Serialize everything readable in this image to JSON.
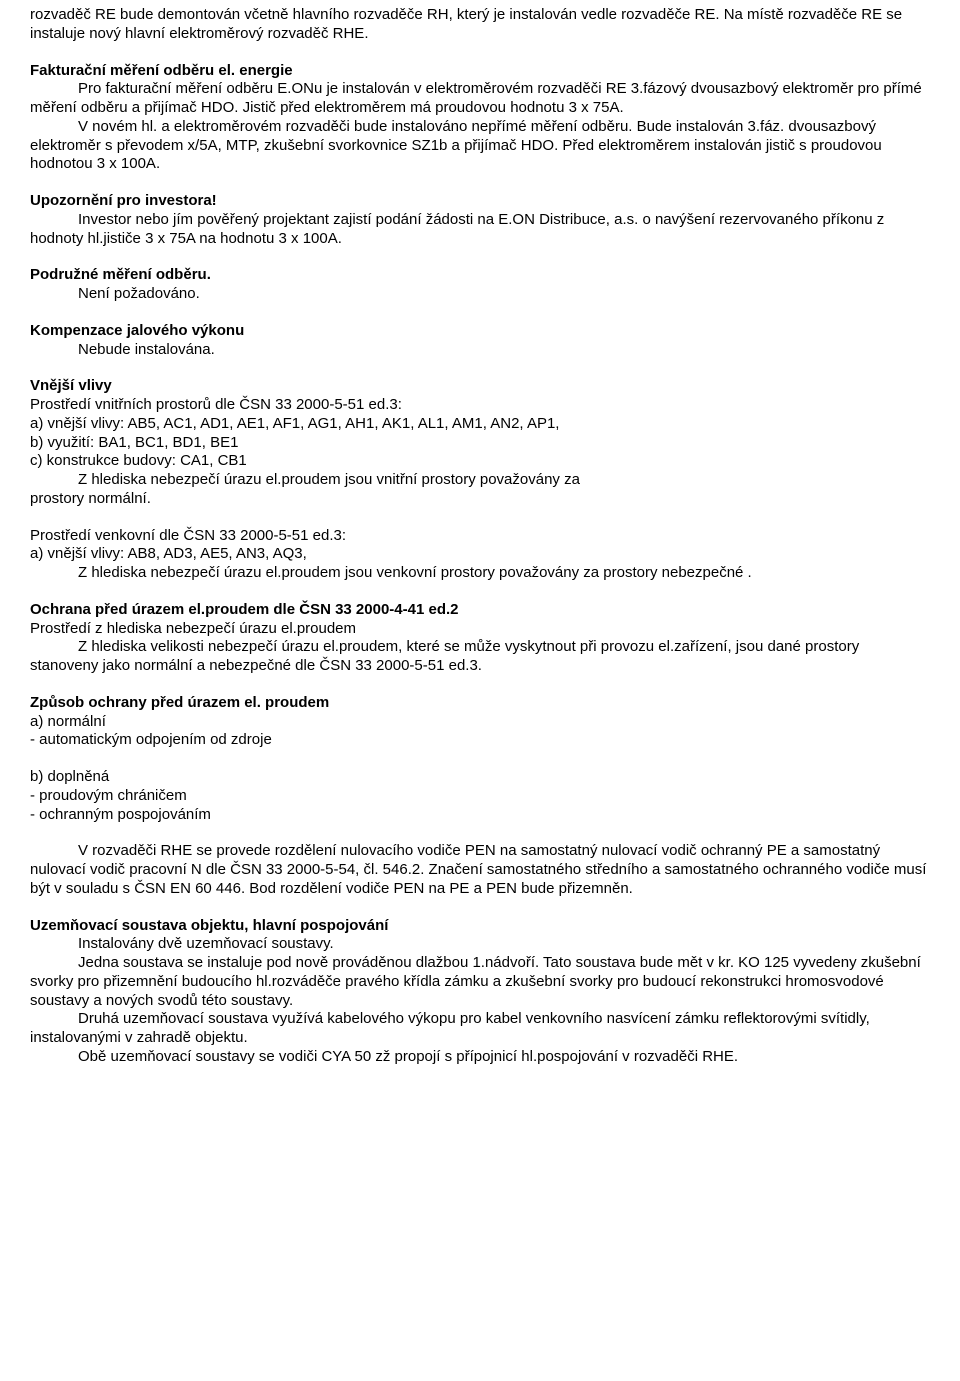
{
  "p1": "rozvaděč RE bude demontován včetně hlavního rozvaděče RH, který je instalován vedle rozvaděče RE. Na místě rozvaděče RE se instaluje nový hlavní elektroměrový rozvaděč RHE.",
  "h1": "Fakturační měření odběru el. energie",
  "p2a": "Pro fakturační měření odběru E.ONu je  instalován v elektroměrovém rozvaděči RE 3.fázový dvousazbový elektroměr pro přímé měření odběru a přijímač HDO. Jistič před elektroměrem má proudovou hodnotu 3 x 75A.",
  "p2b": "V novém hl. a elektroměrovém rozvaděči bude instalováno nepřímé měření odběru. Bude instalován 3.fáz. dvousazbový elektroměr s převodem x/5A, MTP, zkušební svorkovnice SZ1b a přijímač HDO. Před elektroměrem instalován jistič s proudovou hodnotou 3 x 100A.",
  "h2": "Upozornění pro investora!",
  "p3": "Investor nebo jím pověřený projektant zajistí podání žádosti na E.ON Distribuce, a.s. o navýšení rezervovaného příkonu z hodnoty hl.jističe 3 x 75A na hodnotu 3 x 100A.",
  "h3": "Podružné měření odběru.",
  "p4": "Není požadováno.",
  "h4": "Kompenzace jalového výkonu",
  "p5": "Nebude instalována.",
  "h5": "Vnější vlivy",
  "p6a": "Prostředí vnitřních prostorů dle ČSN 33 2000-5-51 ed.3:",
  "p6b": "a) vnější vlivy:    AB5, AC1, AD1, AE1, AF1, AG1, AH1, AK1, AL1, AM1, AN2, AP1,",
  "p6c": "b) využití:            BA1, BC1, BD1, BE1",
  "p6d": "c) konstrukce budovy: CA1, CB1",
  "p6e": "Z hlediska nebezpečí úrazu el.proudem jsou vnitřní prostory považovány za",
  "p6f": "prostory normální.",
  "p7a": "Prostředí venkovní dle ČSN 33 2000-5-51 ed.3:",
  "p7b": "a) vnější vlivy: AB8,  AD3, AE5, AN3, AQ3,",
  "p7c": "Z hlediska nebezpečí úrazu el.proudem jsou venkovní prostory považovány za prostory nebezpečné .",
  "h6": "Ochrana před úrazem el.proudem dle ČSN  33 2000-4-41 ed.2",
  "p8a": "Prostředí z hlediska nebezpečí úrazu el.proudem",
  "p8b": "Z hlediska velikosti nebezpečí úrazu el.proudem, které se může vyskytnout při provozu el.zařízení, jsou dané prostory stanoveny jako  normální a nebezpečné dle ČSN 33 2000-5-51 ed.3.",
  "h7": "Způsob ochrany před úrazem el. proudem",
  "p9a": "a) normální",
  "p9b": "- automatickým odpojením od zdroje",
  "p10a": "b) doplněná",
  "p10b": "- proudovým chráničem",
  "p10c": "- ochranným pospojováním",
  "p11": "V rozvaděči RHE se provede rozdělení nulovacího vodiče PEN na samostatný nulovací vodič ochranný PE a samostatný nulovací vodič pracovní N dle ČSN 33 2000-5-54, čl. 546.2. Značení samostatného středního a samostatného ochranného vodiče musí být v souladu s ČSN EN 60 446. Bod rozdělení vodiče PEN na PE a PEN bude přizemněn.",
  "h8": "Uzemňovací soustava objektu, hlavní pospojování",
  "p12a": "Instalovány dvě uzemňovací soustavy.",
  "p12b": "Jedna soustava se instaluje pod nově prováděnou dlažbou 1.nádvoří. Tato soustava bude mět v kr. KO 125 vyvedeny zkušební svorky pro přizemnění budoucího hl.rozváděče pravého křídla zámku a zkušební svorky pro budoucí rekonstrukci hromosvodové soustavy a nových svodů této soustavy.",
  "p12c": "Druhá uzemňovací soustava využívá kabelového výkopu pro kabel venkovního nasvícení zámku reflektorovými svítidly, instalovanými v zahradě objektu.",
  "p12d": "Obě uzemňovací soustavy se vodiči CYA 50 zž propojí s přípojnicí hl.pospojování v rozvaděči RHE."
}
